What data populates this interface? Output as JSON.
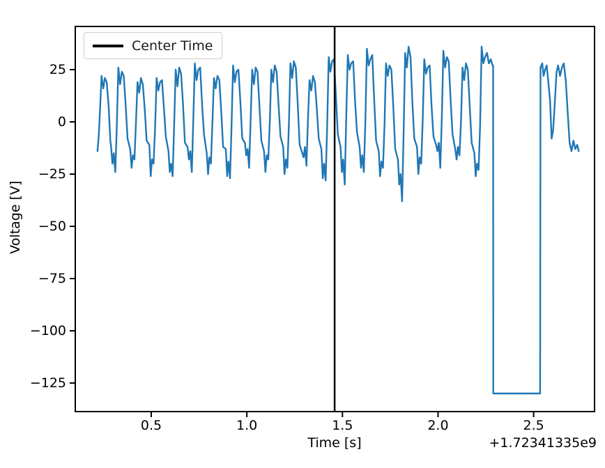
{
  "colors": {
    "signal": "#1f77b4",
    "center_line": "#000000",
    "axis": "#000000",
    "background": "#ffffff",
    "legend_border": "#cccccc"
  },
  "chart_data": {
    "type": "line",
    "xlabel": "Time [s]",
    "ylabel": "Voltage [V]",
    "x_offset_label": "+1.72341335e9",
    "xlim": [
      0.1026,
      2.8186
    ],
    "ylim": [
      -138.67,
      45.67
    ],
    "x_ticks": [
      0.5,
      1.0,
      1.5,
      2.0,
      2.5
    ],
    "x_tick_labels": [
      "0.5",
      "1.0",
      "1.5",
      "2.0",
      "2.5"
    ],
    "y_ticks": [
      25,
      0,
      -25,
      -50,
      -75,
      -100,
      -125
    ],
    "y_tick_labels": [
      "25",
      "0",
      "−25",
      "−50",
      "−75",
      "−100",
      "−125"
    ],
    "grid": false,
    "legend": {
      "position": "upper-left",
      "entries": [
        {
          "label": "Center Time",
          "color": "#000000",
          "style": "solid-line"
        }
      ]
    },
    "center_time_x": 1.459,
    "dropout": {
      "x_start": 2.288,
      "x_end": 2.534,
      "value": -130
    },
    "series": [
      {
        "name": "voltage-signal",
        "color": "#1f77b4",
        "line_width": 2.4,
        "points": [
          [
            0.219,
            -14
          ],
          [
            0.226,
            -6
          ],
          [
            0.233,
            8
          ],
          [
            0.24,
            22
          ],
          [
            0.249,
            16
          ],
          [
            0.257,
            21
          ],
          [
            0.267,
            19
          ],
          [
            0.277,
            8
          ],
          [
            0.286,
            -9
          ],
          [
            0.29,
            -12
          ],
          [
            0.297,
            -20
          ],
          [
            0.304,
            -15
          ],
          [
            0.312,
            -24
          ],
          [
            0.32,
            -2
          ],
          [
            0.328,
            26
          ],
          [
            0.337,
            18
          ],
          [
            0.346,
            24
          ],
          [
            0.356,
            22
          ],
          [
            0.366,
            8
          ],
          [
            0.376,
            -8
          ],
          [
            0.39,
            -13
          ],
          [
            0.397,
            -22
          ],
          [
            0.404,
            -16
          ],
          [
            0.412,
            -18
          ],
          [
            0.42,
            0
          ],
          [
            0.428,
            19
          ],
          [
            0.437,
            14
          ],
          [
            0.446,
            21
          ],
          [
            0.456,
            18
          ],
          [
            0.466,
            6
          ],
          [
            0.476,
            -9
          ],
          [
            0.49,
            -11
          ],
          [
            0.497,
            -26
          ],
          [
            0.504,
            -18
          ],
          [
            0.512,
            -20
          ],
          [
            0.52,
            -3
          ],
          [
            0.528,
            21
          ],
          [
            0.537,
            15
          ],
          [
            0.546,
            19
          ],
          [
            0.556,
            20
          ],
          [
            0.566,
            7
          ],
          [
            0.576,
            -7
          ],
          [
            0.59,
            -14
          ],
          [
            0.597,
            -24
          ],
          [
            0.604,
            -20
          ],
          [
            0.612,
            -26
          ],
          [
            0.62,
            -1
          ],
          [
            0.628,
            25
          ],
          [
            0.637,
            17
          ],
          [
            0.646,
            26
          ],
          [
            0.656,
            23
          ],
          [
            0.666,
            9
          ],
          [
            0.676,
            -10
          ],
          [
            0.69,
            -12
          ],
          [
            0.697,
            -18
          ],
          [
            0.704,
            -14
          ],
          [
            0.712,
            -24
          ],
          [
            0.72,
            2
          ],
          [
            0.728,
            28
          ],
          [
            0.737,
            20
          ],
          [
            0.746,
            25
          ],
          [
            0.756,
            26
          ],
          [
            0.766,
            8
          ],
          [
            0.776,
            -6
          ],
          [
            0.79,
            -15
          ],
          [
            0.797,
            -25
          ],
          [
            0.804,
            -17
          ],
          [
            0.812,
            -20
          ],
          [
            0.82,
            0
          ],
          [
            0.828,
            21
          ],
          [
            0.837,
            16
          ],
          [
            0.846,
            22
          ],
          [
            0.856,
            20
          ],
          [
            0.866,
            5
          ],
          [
            0.876,
            -12
          ],
          [
            0.89,
            -13
          ],
          [
            0.897,
            -26
          ],
          [
            0.904,
            -19
          ],
          [
            0.912,
            -27
          ],
          [
            0.92,
            -2
          ],
          [
            0.928,
            27
          ],
          [
            0.937,
            19
          ],
          [
            0.946,
            24
          ],
          [
            0.956,
            25
          ],
          [
            0.966,
            10
          ],
          [
            0.976,
            -8
          ],
          [
            0.99,
            -10
          ],
          [
            0.997,
            -16
          ],
          [
            1.004,
            -13
          ],
          [
            1.012,
            -22
          ],
          [
            1.02,
            1
          ],
          [
            1.028,
            25
          ],
          [
            1.037,
            18
          ],
          [
            1.046,
            26
          ],
          [
            1.056,
            24
          ],
          [
            1.066,
            7
          ],
          [
            1.076,
            -9
          ],
          [
            1.09,
            -14
          ],
          [
            1.097,
            -24
          ],
          [
            1.104,
            -16
          ],
          [
            1.112,
            -18
          ],
          [
            1.12,
            0
          ],
          [
            1.128,
            25
          ],
          [
            1.137,
            19
          ],
          [
            1.146,
            27
          ],
          [
            1.156,
            24
          ],
          [
            1.166,
            8
          ],
          [
            1.176,
            -7
          ],
          [
            1.19,
            -12
          ],
          [
            1.197,
            -25
          ],
          [
            1.204,
            -18
          ],
          [
            1.212,
            -22
          ],
          [
            1.22,
            -1
          ],
          [
            1.228,
            28
          ],
          [
            1.237,
            21
          ],
          [
            1.246,
            29
          ],
          [
            1.256,
            26
          ],
          [
            1.266,
            9
          ],
          [
            1.276,
            -11
          ],
          [
            1.29,
            -15
          ],
          [
            1.297,
            -17
          ],
          [
            1.304,
            -12
          ],
          [
            1.312,
            -21
          ],
          [
            1.32,
            2
          ],
          [
            1.328,
            20
          ],
          [
            1.337,
            15
          ],
          [
            1.346,
            22
          ],
          [
            1.356,
            19
          ],
          [
            1.366,
            6
          ],
          [
            1.376,
            -8
          ],
          [
            1.39,
            -13
          ],
          [
            1.397,
            -27
          ],
          [
            1.404,
            -20
          ],
          [
            1.412,
            -28
          ],
          [
            1.42,
            -2
          ],
          [
            1.428,
            31
          ],
          [
            1.437,
            24
          ],
          [
            1.446,
            29
          ],
          [
            1.456,
            30
          ],
          [
            1.466,
            12
          ],
          [
            1.476,
            -6
          ],
          [
            1.49,
            -12
          ],
          [
            1.497,
            -24
          ],
          [
            1.504,
            -18
          ],
          [
            1.512,
            -30
          ],
          [
            1.52,
            3
          ],
          [
            1.528,
            32
          ],
          [
            1.537,
            25
          ],
          [
            1.546,
            28
          ],
          [
            1.556,
            29
          ],
          [
            1.566,
            10
          ],
          [
            1.576,
            -5
          ],
          [
            1.59,
            -12
          ],
          [
            1.597,
            -22
          ],
          [
            1.604,
            -16
          ],
          [
            1.612,
            -24
          ],
          [
            1.62,
            0
          ],
          [
            1.628,
            35
          ],
          [
            1.637,
            27
          ],
          [
            1.646,
            30
          ],
          [
            1.656,
            32
          ],
          [
            1.666,
            11
          ],
          [
            1.676,
            -9
          ],
          [
            1.69,
            -14
          ],
          [
            1.697,
            -26
          ],
          [
            1.704,
            -19
          ],
          [
            1.712,
            -22
          ],
          [
            1.72,
            -1
          ],
          [
            1.728,
            28
          ],
          [
            1.737,
            22
          ],
          [
            1.746,
            27
          ],
          [
            1.756,
            25
          ],
          [
            1.766,
            7
          ],
          [
            1.776,
            -13
          ],
          [
            1.79,
            -18
          ],
          [
            1.797,
            -30
          ],
          [
            1.804,
            -25
          ],
          [
            1.812,
            -38
          ],
          [
            1.82,
            -5
          ],
          [
            1.828,
            33
          ],
          [
            1.837,
            26
          ],
          [
            1.846,
            36
          ],
          [
            1.856,
            31
          ],
          [
            1.866,
            9
          ],
          [
            1.876,
            -8
          ],
          [
            1.89,
            -12
          ],
          [
            1.897,
            -25
          ],
          [
            1.904,
            -17
          ],
          [
            1.912,
            -20
          ],
          [
            1.92,
            1
          ],
          [
            1.928,
            30
          ],
          [
            1.937,
            23
          ],
          [
            1.946,
            26
          ],
          [
            1.956,
            27
          ],
          [
            1.966,
            8
          ],
          [
            1.976,
            -7
          ],
          [
            1.99,
            -11
          ],
          [
            1.997,
            -14
          ],
          [
            2.004,
            -10
          ],
          [
            2.012,
            -22
          ],
          [
            2.02,
            2
          ],
          [
            2.028,
            34
          ],
          [
            2.037,
            26
          ],
          [
            2.046,
            31
          ],
          [
            2.056,
            29
          ],
          [
            2.066,
            10
          ],
          [
            2.076,
            -6
          ],
          [
            2.09,
            -13
          ],
          [
            2.097,
            -18
          ],
          [
            2.104,
            -12
          ],
          [
            2.112,
            -16
          ],
          [
            2.12,
            0
          ],
          [
            2.128,
            26
          ],
          [
            2.137,
            20
          ],
          [
            2.146,
            28
          ],
          [
            2.156,
            25
          ],
          [
            2.166,
            7
          ],
          [
            2.176,
            -10
          ],
          [
            2.19,
            -15
          ],
          [
            2.197,
            -26
          ],
          [
            2.204,
            -20
          ],
          [
            2.212,
            -23
          ],
          [
            2.22,
            -2
          ],
          [
            2.228,
            36
          ],
          [
            2.237,
            28
          ],
          [
            2.246,
            31
          ],
          [
            2.256,
            33
          ],
          [
            2.266,
            28
          ],
          [
            2.276,
            30
          ],
          [
            2.285,
            27
          ],
          [
            2.288,
            27
          ],
          [
            2.289,
            -130
          ],
          [
            2.534,
            -130
          ],
          [
            2.536,
            26
          ],
          [
            2.545,
            28
          ],
          [
            2.552,
            22
          ],
          [
            2.56,
            25
          ],
          [
            2.568,
            27
          ],
          [
            2.576,
            20
          ],
          [
            2.586,
            10
          ],
          [
            2.594,
            -8
          ],
          [
            2.602,
            -4
          ],
          [
            2.61,
            8
          ],
          [
            2.62,
            24
          ],
          [
            2.628,
            27
          ],
          [
            2.638,
            22
          ],
          [
            2.648,
            26
          ],
          [
            2.658,
            28
          ],
          [
            2.668,
            20
          ],
          [
            2.678,
            5
          ],
          [
            2.688,
            -10
          ],
          [
            2.698,
            -14
          ],
          [
            2.708,
            -9
          ],
          [
            2.718,
            -13
          ],
          [
            2.728,
            -11
          ],
          [
            2.736,
            -14
          ]
        ]
      }
    ]
  }
}
